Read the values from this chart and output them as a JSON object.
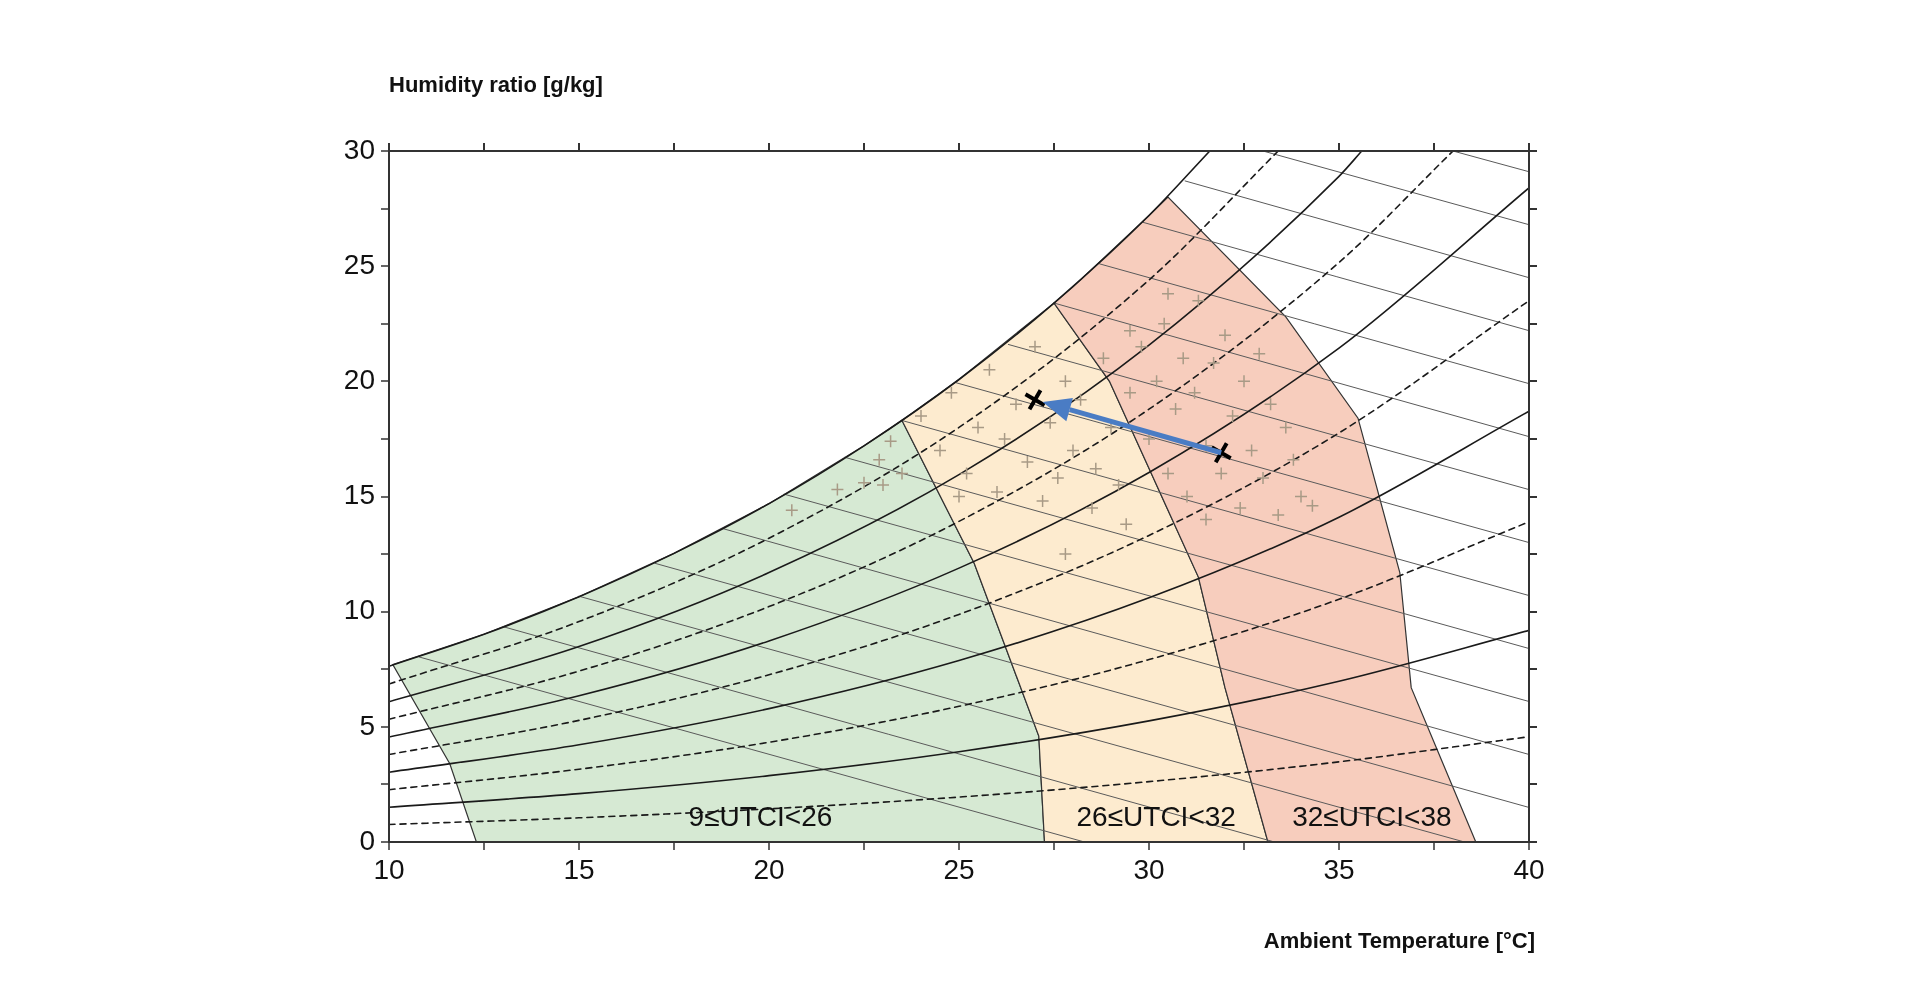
{
  "chart_data": {
    "type": "line",
    "xlabel": "Ambient Temperature [°C]",
    "ylabel": "Humidity ratio [g/kg]",
    "xlim": [
      10,
      40
    ],
    "ylim": [
      0,
      30
    ],
    "xticks": [
      10,
      {
        "value": 12.5,
        "label": null
      },
      15,
      {
        "value": 17.5,
        "label": null
      },
      20,
      {
        "value": 22.5,
        "label": null
      },
      25,
      {
        "value": 27.5,
        "label": null
      },
      30,
      {
        "value": 32.5,
        "label": null
      },
      35,
      {
        "value": 37.5,
        "label": null
      },
      40
    ],
    "yticks": [
      0,
      {
        "value": 2.5,
        "label": null
      },
      5,
      {
        "value": 7.5,
        "label": null
      },
      10,
      {
        "value": 12.5,
        "label": null
      },
      15,
      {
        "value": 17.5,
        "label": null
      },
      20,
      {
        "value": 22.5,
        "label": null
      },
      25,
      {
        "value": 27.5,
        "label": null
      },
      30
    ],
    "grid": false,
    "legend": false,
    "series": [
      {
        "type": "area",
        "name": "9≤UTCI<26",
        "color": "#d6e9d3",
        "x": [
          12.3,
          11.6,
          10.1,
          12.5,
          15,
          17.5,
          20,
          22.5,
          23.5,
          25.4,
          27.1,
          27.25,
          12.3
        ],
        "values": [
          0,
          3.4,
          7.7,
          9.02,
          10.65,
          12.53,
          14.69,
          17.2,
          18.3,
          12.1,
          4.6,
          0,
          0
        ]
      },
      {
        "type": "area",
        "name": "26≤UTCI<32",
        "color": "#fdebcf",
        "x": [
          27.25,
          27.1,
          25.4,
          23.5,
          25,
          27.5,
          28.96,
          31.3,
          32,
          33.13,
          27.25
        ],
        "values": [
          0,
          4.6,
          12.1,
          18.3,
          20.08,
          23.4,
          20,
          11.5,
          6.7,
          0,
          0
        ]
      },
      {
        "type": "area",
        "name": "32≤UTCI<38",
        "color": "#f7cdbd",
        "x": [
          33.13,
          32,
          31.3,
          28.96,
          27.5,
          28,
          30,
          30.5,
          33.6,
          35.5,
          36.6,
          36.9,
          38.6,
          33.13
        ],
        "values": [
          0,
          6.7,
          11.5,
          20,
          23.4,
          24.1,
          27.2,
          28,
          22.8,
          18.4,
          11.7,
          6.7,
          0,
          0
        ]
      },
      {
        "color": "#5a5a5a",
        "line_style": "solid",
        "marker": "none",
        "x": [
          10.8,
          28.3
        ],
        "values": [
          8.03,
          0
        ]
      },
      {
        "color": "#5a5a5a",
        "line_style": "solid",
        "marker": "none",
        "x": [
          13,
          33.3
        ],
        "values": [
          9.35,
          0
        ]
      },
      {
        "color": "#5a5a5a",
        "line_style": "solid",
        "marker": "none",
        "x": [
          15,
          38.3
        ],
        "values": [
          10.67,
          0
        ]
      },
      {
        "color": "#5a5a5a",
        "line_style": "solid",
        "marker": "none",
        "x": [
          17,
          40
        ],
        "values": [
          12.1,
          1.5
        ]
      },
      {
        "color": "#5a5a5a",
        "line_style": "solid",
        "marker": "none",
        "x": [
          18.8,
          40
        ],
        "values": [
          13.6,
          3.8
        ]
      },
      {
        "color": "#5a5a5a",
        "line_style": "solid",
        "marker": "none",
        "x": [
          20.4,
          40
        ],
        "values": [
          15.1,
          6.1
        ]
      },
      {
        "color": "#5a5a5a",
        "line_style": "solid",
        "marker": "none",
        "x": [
          22,
          40
        ],
        "values": [
          16.7,
          8.4
        ]
      },
      {
        "color": "#5a5a5a",
        "line_style": "solid",
        "marker": "none",
        "x": [
          23.5,
          40
        ],
        "values": [
          18.3,
          10.7
        ]
      },
      {
        "color": "#5a5a5a",
        "line_style": "solid",
        "marker": "none",
        "x": [
          24.9,
          40
        ],
        "values": [
          19.95,
          13
        ]
      },
      {
        "color": "#5a5a5a",
        "line_style": "solid",
        "marker": "none",
        "x": [
          26.3,
          40
        ],
        "values": [
          21.6,
          15.3
        ]
      },
      {
        "color": "#5a5a5a",
        "line_style": "solid",
        "marker": "none",
        "x": [
          27.5,
          40
        ],
        "values": [
          23.4,
          17.6
        ]
      },
      {
        "color": "#5a5a5a",
        "line_style": "solid",
        "marker": "none",
        "x": [
          28.7,
          40
        ],
        "values": [
          25.1,
          19.9
        ]
      },
      {
        "color": "#5a5a5a",
        "line_style": "solid",
        "marker": "none",
        "x": [
          29.85,
          40
        ],
        "values": [
          26.9,
          22.2
        ]
      },
      {
        "color": "#5a5a5a",
        "line_style": "solid",
        "marker": "none",
        "x": [
          30.95,
          40
        ],
        "values": [
          28.7,
          24.5
        ]
      },
      {
        "color": "#5a5a5a",
        "line_style": "solid",
        "marker": "none",
        "x": [
          33,
          40
        ],
        "values": [
          30,
          26.8
        ]
      },
      {
        "color": "#5a5a5a",
        "line_style": "solid",
        "marker": "none",
        "x": [
          38,
          40
        ],
        "values": [
          30,
          29.1
        ]
      },
      {
        "color": "#1a1a1a",
        "line_style": "solid",
        "marker": "none",
        "x": [
          10,
          12.5,
          15,
          17.5,
          20,
          22.5,
          25,
          27.5,
          30,
          31.6
        ],
        "values": [
          7.63,
          9.02,
          10.65,
          12.53,
          14.69,
          17.2,
          20.08,
          23.4,
          27.2,
          30
        ]
      },
      {
        "color": "#1a1a1a",
        "line_style": "dashed",
        "marker": "none",
        "x": [
          10,
          15,
          20,
          25,
          30,
          33.4
        ],
        "values": [
          6.86,
          9.57,
          13.19,
          18,
          24.4,
          30
        ]
      },
      {
        "color": "#1a1a1a",
        "line_style": "solid",
        "marker": "none",
        "x": [
          10,
          15,
          20,
          25,
          30,
          35,
          35.6
        ],
        "values": [
          6.09,
          8.49,
          11.7,
          15.95,
          21.57,
          28.9,
          30
        ]
      },
      {
        "color": "#1a1a1a",
        "line_style": "dashed",
        "marker": "none",
        "x": [
          10,
          15,
          20,
          25,
          30,
          35,
          38
        ],
        "values": [
          5.33,
          7.42,
          10.22,
          13.92,
          18.79,
          25.16,
          30
        ]
      },
      {
        "color": "#1a1a1a",
        "line_style": "solid",
        "marker": "none",
        "x": [
          10,
          15,
          20,
          25,
          30,
          35,
          40
        ],
        "values": [
          4.56,
          6.35,
          8.73,
          11.89,
          16.04,
          21.44,
          28.4
        ]
      },
      {
        "color": "#1a1a1a",
        "line_style": "dashed",
        "marker": "none",
        "x": [
          10,
          15,
          20,
          25,
          30,
          35,
          40
        ],
        "values": [
          3.8,
          5.28,
          7.26,
          9.88,
          13.31,
          17.76,
          23.5
        ]
      },
      {
        "color": "#1a1a1a",
        "line_style": "solid",
        "marker": "none",
        "x": [
          10,
          15,
          20,
          25,
          30,
          35,
          40
        ],
        "values": [
          3.03,
          4.22,
          5.79,
          7.88,
          10.6,
          14.1,
          18.7
        ]
      },
      {
        "color": "#1a1a1a",
        "line_style": "dashed",
        "marker": "none",
        "x": [
          10,
          15,
          20,
          25,
          30,
          35,
          40
        ],
        "values": [
          2.27,
          3.16,
          4.33,
          5.89,
          7.92,
          10.54,
          13.9
        ]
      },
      {
        "color": "#1a1a1a",
        "line_style": "solid",
        "marker": "none",
        "x": [
          10,
          15,
          20,
          25,
          30,
          35,
          40
        ],
        "values": [
          1.51,
          2.1,
          2.88,
          3.92,
          5.26,
          6.98,
          9.19
        ]
      },
      {
        "color": "#1a1a1a",
        "line_style": "dashed",
        "marker": "none",
        "x": [
          10,
          15,
          20,
          25,
          30,
          35,
          40
        ],
        "values": [
          0.76,
          1.05,
          1.44,
          1.95,
          2.62,
          3.48,
          4.57
        ]
      },
      {
        "type": "scatter",
        "color": "#a89a86",
        "marker": "cross",
        "x": [
          20.6,
          21.8,
          22.5,
          22.9,
          23.2,
          23.5,
          23,
          24,
          24.5,
          24.8,
          25.2,
          25.5,
          25.8,
          26,
          26.2,
          26.5,
          26.8,
          27,
          27.2,
          27.4,
          27.6,
          27.8,
          28,
          28.2,
          28.5,
          28.6,
          28.8,
          29,
          29.2,
          29.4,
          29.5,
          27.8,
          25,
          29.8,
          30,
          30.2,
          30.4,
          30.5,
          30.7,
          30.9,
          31,
          31.2,
          31.3,
          31.5,
          31.7,
          31.9,
          32,
          32.2,
          32.4,
          32.5,
          32.7,
          32.9,
          33,
          33.2,
          33.4,
          33.6,
          33.8,
          34,
          34.3,
          31.5,
          30.5,
          29.5
        ],
        "values": [
          14.4,
          15.3,
          15.6,
          16.6,
          17.4,
          16,
          15.5,
          18.5,
          17,
          19.5,
          16,
          18,
          20.5,
          15.2,
          17.5,
          19,
          16.5,
          21.5,
          14.8,
          18.2,
          15.8,
          20,
          17,
          19.2,
          14.5,
          16.2,
          21,
          18,
          15.5,
          13.8,
          19.5,
          12.5,
          15,
          21.5,
          17.5,
          20,
          22.5,
          16,
          18.8,
          21,
          15,
          19.5,
          23.5,
          17.2,
          20.8,
          16,
          22,
          18.5,
          14.5,
          20,
          17,
          21.2,
          15.8,
          19,
          14.2,
          18,
          16.6,
          15,
          14.6,
          14,
          23.8,
          22.2
        ]
      },
      {
        "type": "scatter",
        "color": "#000000",
        "marker": "cross",
        "x": [
          31.9,
          27
        ],
        "values": [
          16.9,
          19.2
        ]
      }
    ]
  }
}
